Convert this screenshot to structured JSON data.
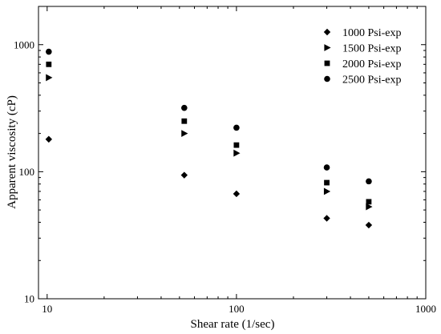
{
  "chart_data": {
    "type": "scatter",
    "xlabel": "Shear rate (1/sec)",
    "ylabel": "Apparent viscosity (cP)",
    "xscale": "log",
    "yscale": "log",
    "xlim": [
      9,
      1000
    ],
    "ylim": [
      10,
      2000
    ],
    "xticks": [
      10,
      100,
      1000
    ],
    "xtick_labels": [
      "10",
      "100",
      "1000"
    ],
    "yticks": [
      10,
      100,
      1000
    ],
    "ytick_labels": [
      "10",
      "100",
      "1000"
    ],
    "grid": false,
    "legend_position": "top-right",
    "series": [
      {
        "name": "1000 Psi-exp",
        "marker": "diamond",
        "color": "#000000",
        "x": [
          10.2,
          53,
          100,
          300,
          500
        ],
        "y": [
          180,
          94,
          67,
          43,
          38
        ]
      },
      {
        "name": "1500 Psi-exp",
        "marker": "triangle-right",
        "color": "#000000",
        "x": [
          10.2,
          53,
          100,
          300,
          500
        ],
        "y": [
          550,
          200,
          140,
          70,
          53
        ]
      },
      {
        "name": "2000 Psi-exp",
        "marker": "square",
        "color": "#000000",
        "x": [
          10.2,
          53,
          100,
          300,
          500
        ],
        "y": [
          700,
          250,
          162,
          82,
          58
        ]
      },
      {
        "name": "2500 Psi-exp",
        "marker": "circle",
        "color": "#000000",
        "x": [
          10.2,
          53,
          100,
          300,
          500
        ],
        "y": [
          880,
          318,
          222,
          108,
          84
        ]
      }
    ]
  }
}
